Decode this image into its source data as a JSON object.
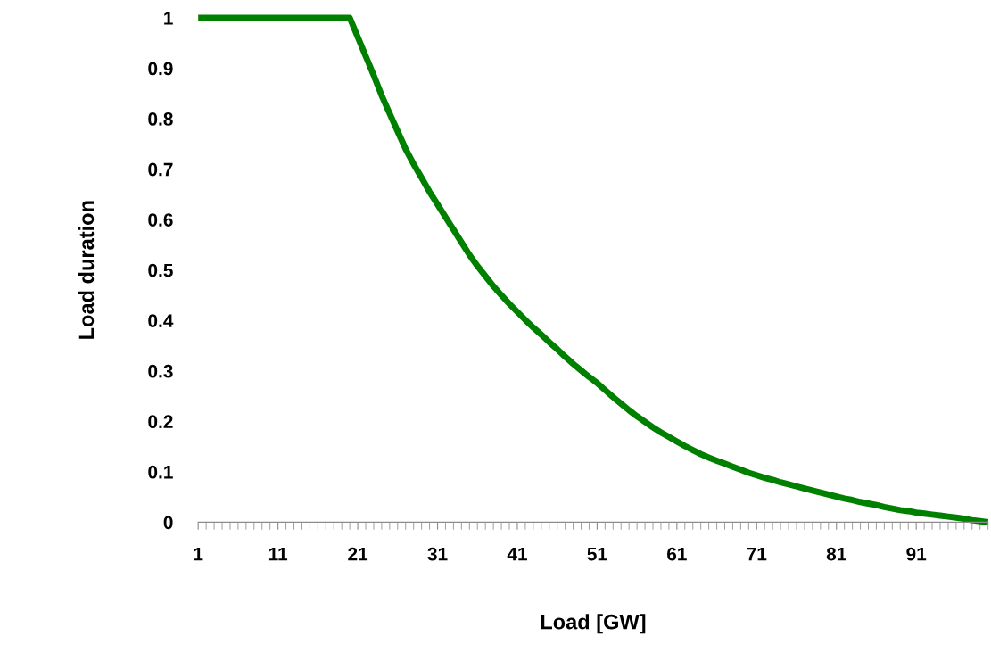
{
  "chart_data": {
    "type": "line",
    "xlabel": "Load [GW]",
    "ylabel": "Load duration",
    "categories": [
      "1",
      null,
      null,
      null,
      null,
      null,
      null,
      null,
      null,
      null,
      "11",
      null,
      null,
      null,
      null,
      null,
      null,
      null,
      null,
      null,
      "21",
      null,
      null,
      null,
      null,
      null,
      null,
      null,
      null,
      null,
      "31",
      null,
      null,
      null,
      null,
      null,
      null,
      null,
      null,
      null,
      "41",
      null,
      null,
      null,
      null,
      null,
      null,
      null,
      null,
      null,
      "51",
      null,
      null,
      null,
      null,
      null,
      null,
      null,
      null,
      null,
      "61",
      null,
      null,
      null,
      null,
      null,
      null,
      null,
      null,
      null,
      "71",
      null,
      null,
      null,
      null,
      null,
      null,
      null,
      null,
      null,
      "81",
      null,
      null,
      null,
      null,
      null,
      null,
      null,
      null,
      null,
      "91",
      null,
      null,
      null,
      null,
      null,
      null,
      null,
      null,
      null
    ],
    "series": [
      {
        "color": "#008000",
        "values": [
          1,
          1,
          1,
          1,
          1,
          1,
          1,
          1,
          1,
          1,
          1,
          1,
          1,
          1,
          1,
          1,
          1,
          1,
          1,
          1,
          0.962,
          0.924,
          0.886,
          0.846,
          0.81,
          0.775,
          0.74,
          0.71,
          0.683,
          0.655,
          0.63,
          0.605,
          0.58,
          0.555,
          0.53,
          0.508,
          0.488,
          0.468,
          0.45,
          0.433,
          0.417,
          0.401,
          0.386,
          0.372,
          0.357,
          0.343,
          0.328,
          0.314,
          0.301,
          0.288,
          0.276,
          0.262,
          0.248,
          0.235,
          0.222,
          0.21,
          0.199,
          0.188,
          0.178,
          0.169,
          0.16,
          0.151,
          0.143,
          0.135,
          0.128,
          0.122,
          0.116,
          0.11,
          0.104,
          0.098,
          0.093,
          0.088,
          0.084,
          0.079,
          0.075,
          0.071,
          0.067,
          0.063,
          0.059,
          0.055,
          0.051,
          0.047,
          0.044,
          0.04,
          0.037,
          0.034,
          0.03,
          0.027,
          0.024,
          0.022,
          0.019,
          0.017,
          0.015,
          0.013,
          0.011,
          0.009,
          0.007,
          0.004,
          0.002,
          0
        ]
      }
    ],
    "ylim": [
      0,
      1
    ],
    "yticks": [
      0,
      {
        "value": 0.1,
        "label": "0.1"
      },
      {
        "value": 0.2,
        "label": "0.2"
      },
      {
        "value": 0.3,
        "label": "0.3"
      },
      {
        "value": 0.4,
        "label": "0.4"
      },
      {
        "value": 0.5,
        "label": "0.5"
      },
      {
        "value": 0.6,
        "label": "0.6"
      },
      {
        "value": 0.7,
        "label": "0.7"
      },
      {
        "value": 0.8,
        "label": "0.8"
      },
      {
        "value": 0.9,
        "label": "0.9"
      },
      1
    ],
    "grid": false,
    "marker": "none",
    "line_style": "solid"
  }
}
